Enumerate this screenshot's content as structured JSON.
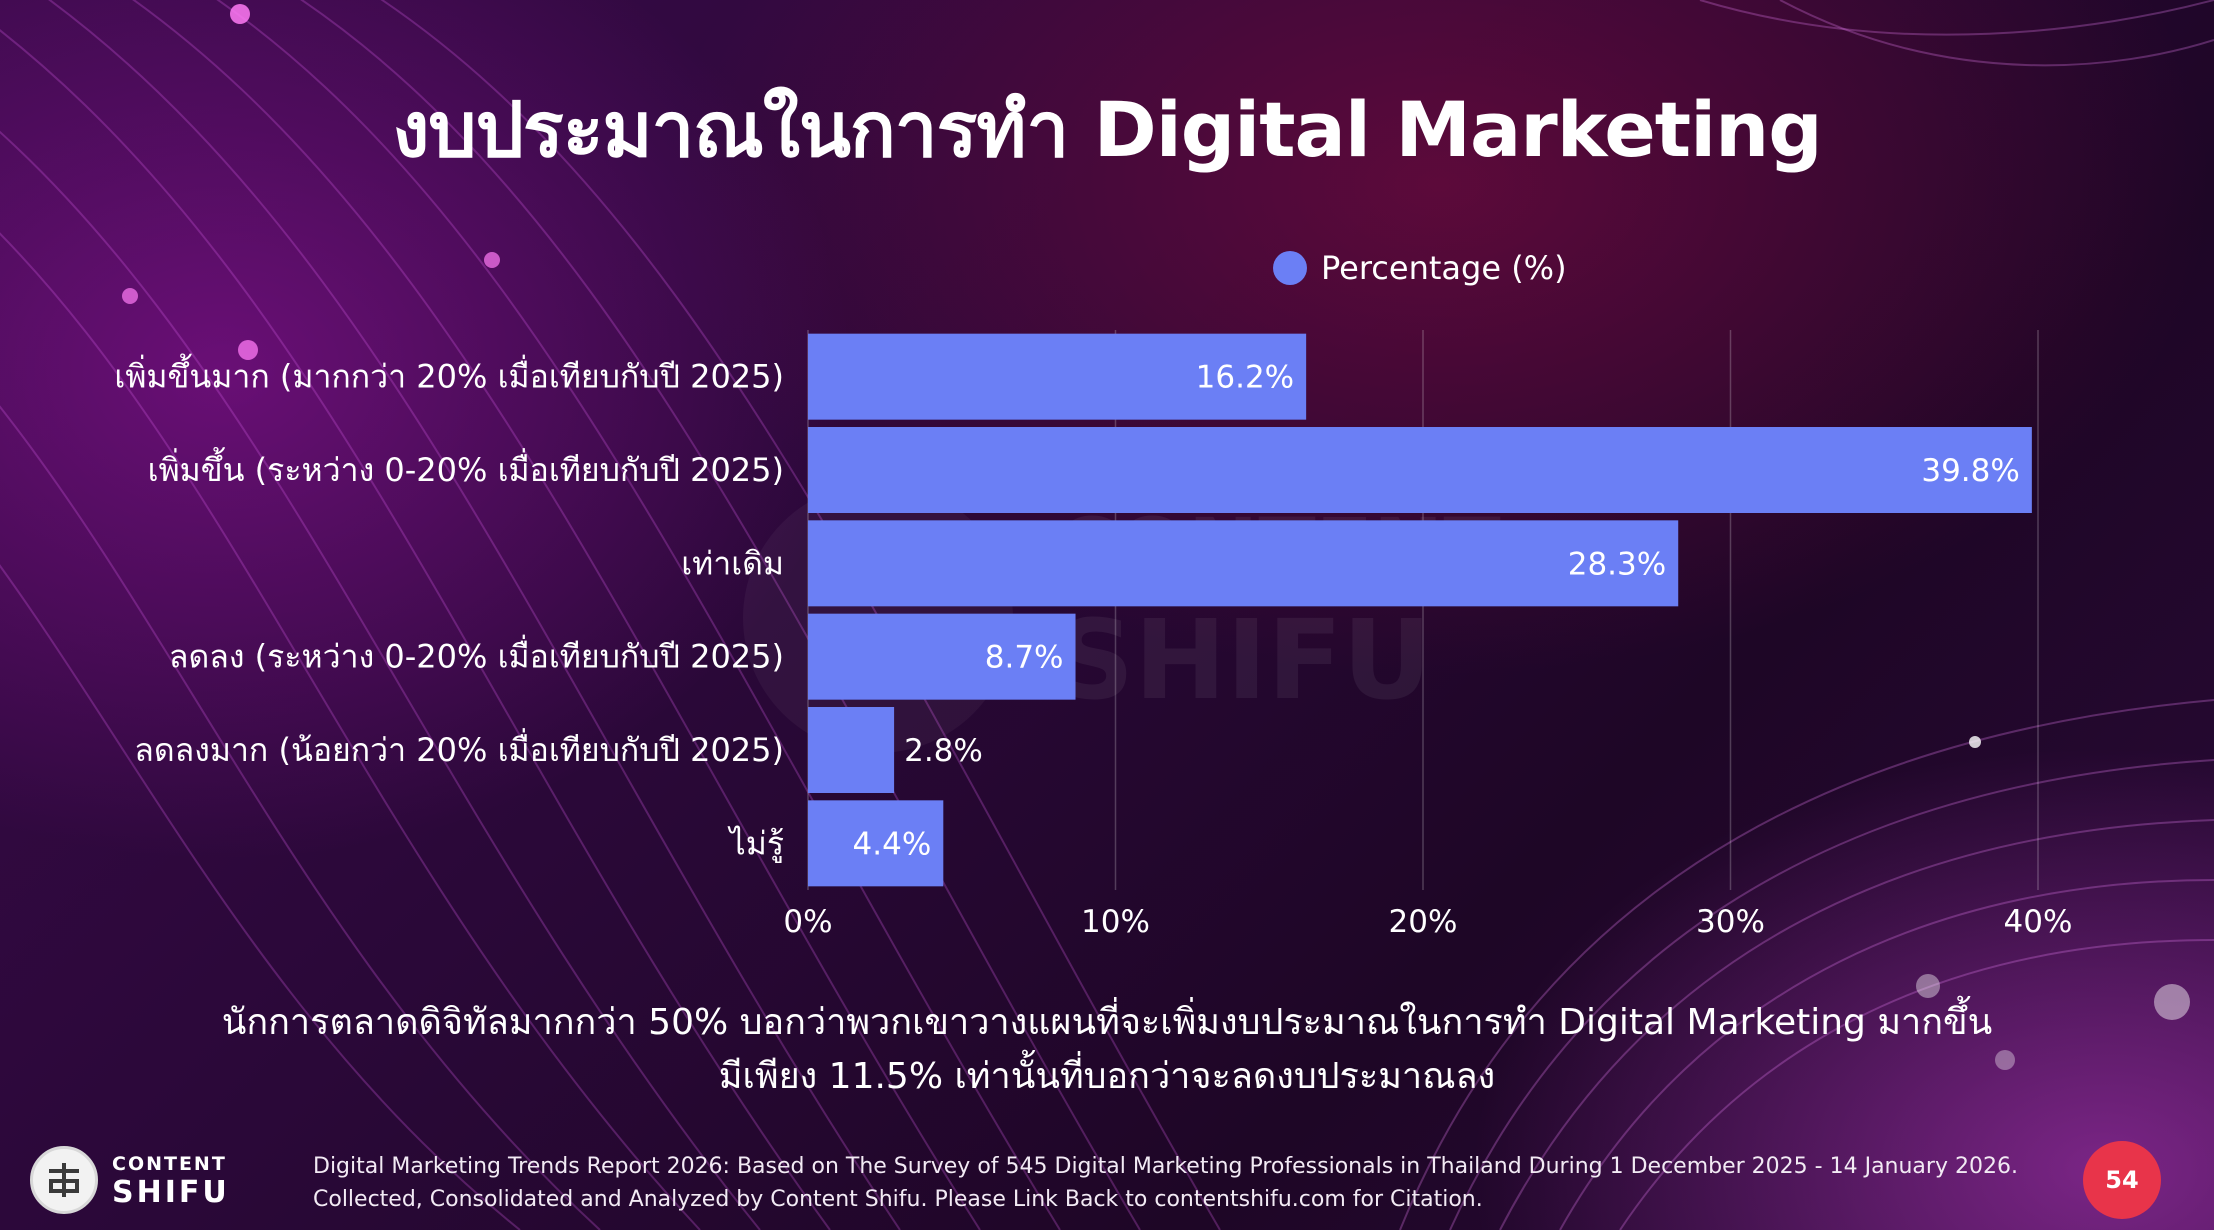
{
  "title": "งบประมาณในการทำ Digital Marketing",
  "chart_data": {
    "type": "bar",
    "orientation": "horizontal",
    "title": "งบประมาณในการทำ Digital Marketing",
    "categories": [
      "เพิ่มขึ้นมาก (มากกว่า 20% เมื่อเทียบกับปี 2025)",
      "เพิ่มขึ้น (ระหว่าง 0-20% เมื่อเทียบกับปี 2025)",
      "เท่าเดิม",
      "ลดลง (ระหว่าง 0-20% เมื่อเทียบกับปี 2025)",
      "ลดลงมาก (น้อยกว่า 20% เมื่อเทียบกับปี 2025)",
      "ไม่รู้"
    ],
    "series": [
      {
        "name": "Percentage (%)",
        "values": [
          16.2,
          39.8,
          28.3,
          8.7,
          2.8,
          4.4
        ]
      }
    ],
    "data_labels": [
      "16.2%",
      "39.8%",
      "28.3%",
      "8.7%",
      "2.8%",
      "4.4%"
    ],
    "xlim": [
      0,
      40
    ],
    "x_ticks": [
      0,
      10,
      20,
      30,
      40
    ],
    "x_tick_labels": [
      "0%",
      "10%",
      "20%",
      "30%",
      "40%"
    ],
    "grid": "vertical",
    "legend": "top",
    "bar_color": "#6b7ff5"
  },
  "caption": {
    "line1": "นักการตลาดดิจิทัลมากกว่า 50% บอกว่าพวกเขาวางแผนที่จะเพิ่มงบประมาณในการทำ Digital Marketing มากขึ้น",
    "line2": "มีเพียง 11.5% เท่านั้นที่บอกว่าจะลดงบประมาณลง"
  },
  "footer": {
    "brand_top": "CONTENT",
    "brand_bottom": "SHIFU",
    "line1": "Digital Marketing Trends Report 2026: Based on The Survey of 545 Digital Marketing Professionals in Thailand During 1 December 2025 - 14 January 2026.",
    "line2": "Collected, Consolidated and Analyzed by Content Shifu. Please Link Back to contentshifu.com for Citation.",
    "page_number": "54"
  },
  "watermark": {
    "line1": "CONTENT",
    "line2": "SHIFU"
  },
  "icons": {
    "logo": "content-shifu-logo-icon",
    "legend": "legend-dot-icon"
  }
}
